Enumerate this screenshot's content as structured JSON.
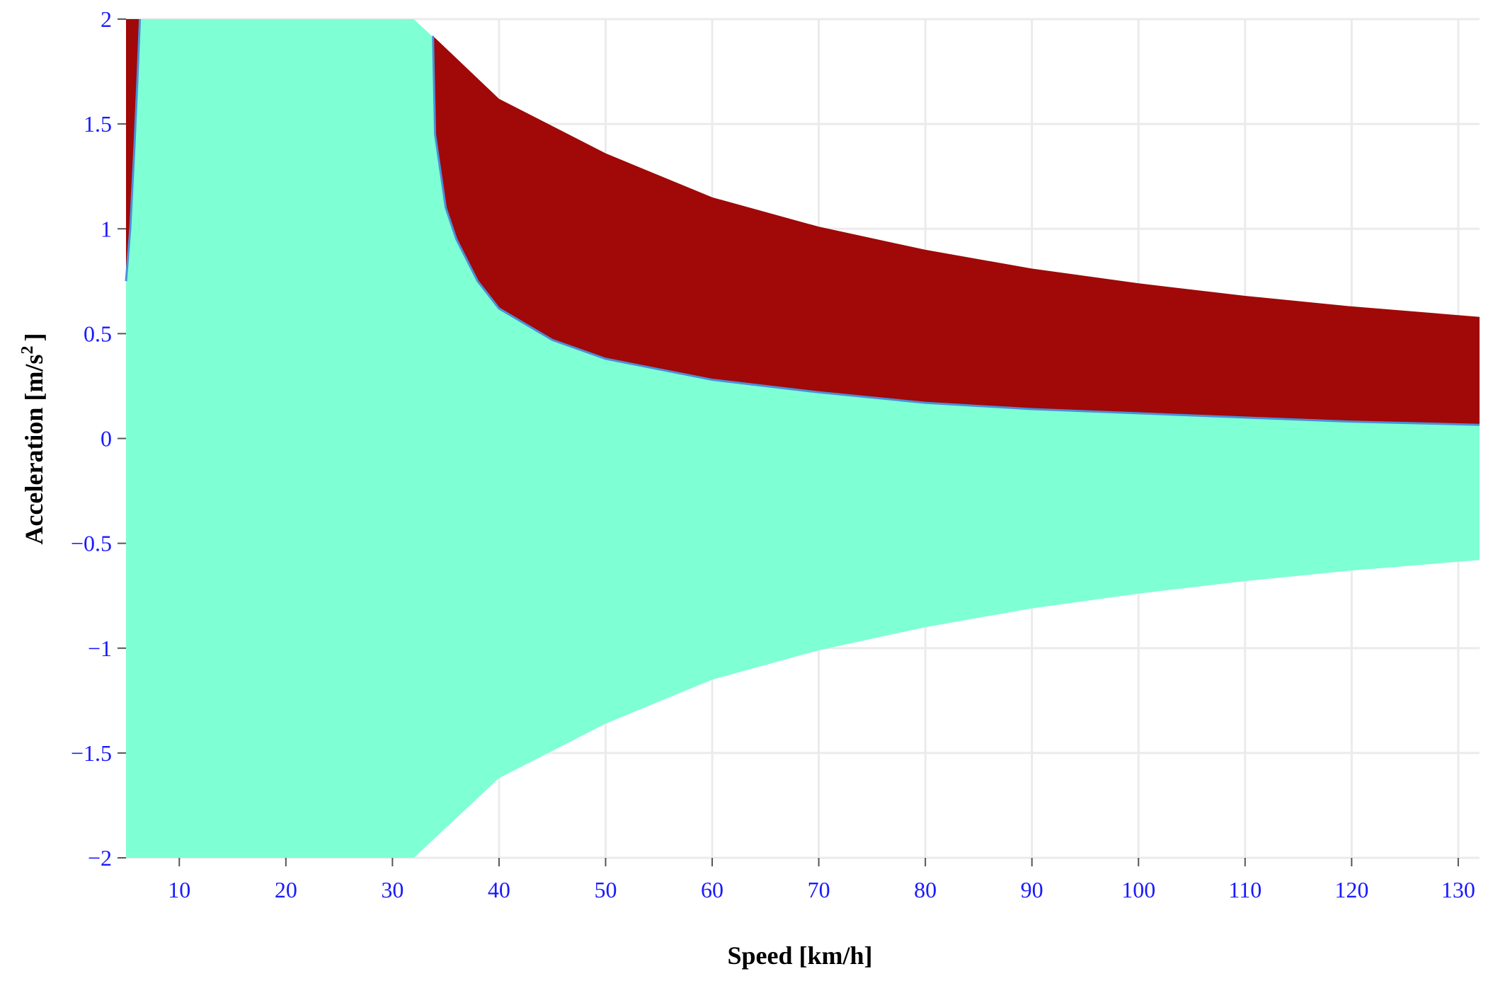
{
  "chart_data": {
    "type": "area",
    "title": "",
    "xlabel": "Speed [km/h]",
    "ylabel_main": "Acceleration [m/s",
    "ylabel_sup": "2",
    "ylabel_close": "]",
    "xlim": [
      5,
      132
    ],
    "ylim": [
      -2,
      2
    ],
    "grid": true,
    "legend": "none",
    "x_ticks": [
      10,
      20,
      30,
      40,
      50,
      60,
      70,
      80,
      90,
      100,
      110,
      120,
      130
    ],
    "y_ticks": [
      -2,
      -1.5,
      -1,
      -0.5,
      0,
      0.5,
      1,
      1.5,
      2
    ],
    "x_tick_labels": [
      "10",
      "20",
      "30",
      "40",
      "50",
      "60",
      "70",
      "80",
      "90",
      "100",
      "110",
      "120",
      "130"
    ],
    "y_tick_labels": [
      "−2",
      "−1.5",
      "−1",
      "−0.5",
      "0",
      "0.5",
      "1",
      "1.5",
      "2"
    ],
    "colors": {
      "safe_region": "#7fffd4",
      "unsafe_region": "#a10808",
      "boundary": "#4a90d9",
      "tick_text": "#1a1aff",
      "grid": "#ebebeb"
    },
    "regions": [
      {
        "id": "safe-envelope",
        "color": "#7fffd4",
        "upper": {
          "x": [
            5,
            32,
            40,
            50,
            60,
            70,
            80,
            90,
            100,
            110,
            120,
            132
          ],
          "y": [
            2,
            2,
            1.62,
            1.36,
            1.15,
            1.01,
            0.9,
            0.81,
            0.74,
            0.68,
            0.63,
            0.58
          ]
        },
        "lower": {
          "x": [
            5,
            32,
            40,
            50,
            60,
            70,
            80,
            90,
            100,
            110,
            120,
            132
          ],
          "y": [
            -2,
            -2,
            -1.62,
            -1.36,
            -1.15,
            -1.01,
            -0.9,
            -0.81,
            -0.74,
            -0.68,
            -0.63,
            -0.58
          ]
        }
      },
      {
        "id": "unsafe-low-speed",
        "color": "#a10808",
        "left_x": 5,
        "boundary": {
          "x": [
            5,
            5.4,
            5.8,
            6.1,
            6.3
          ],
          "y": [
            0.75,
            1.0,
            1.4,
            1.75,
            2
          ]
        }
      },
      {
        "id": "unsafe-high-speed",
        "color": "#a10808",
        "upper": {
          "x": [
            33.8,
            40,
            50,
            60,
            70,
            80,
            90,
            100,
            110,
            120,
            132
          ],
          "y": [
            1.92,
            1.62,
            1.36,
            1.15,
            1.01,
            0.9,
            0.81,
            0.74,
            0.68,
            0.63,
            0.58
          ]
        },
        "lower": {
          "x": [
            33.8,
            34,
            35,
            36,
            38,
            40,
            45,
            50,
            60,
            70,
            80,
            90,
            100,
            110,
            120,
            132
          ],
          "y": [
            1.92,
            1.45,
            1.1,
            0.95,
            0.75,
            0.62,
            0.47,
            0.38,
            0.28,
            0.22,
            0.17,
            0.14,
            0.12,
            0.1,
            0.08,
            0.065
          ]
        }
      }
    ]
  }
}
